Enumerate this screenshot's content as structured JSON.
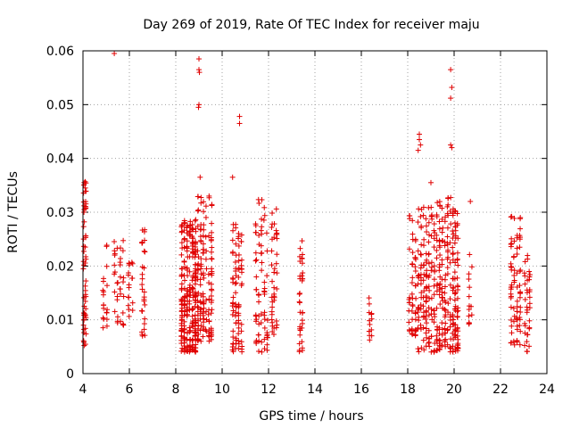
{
  "chart_data": {
    "type": "scatter",
    "title": "Day 269 of 2019, Rate Of TEC Index for receiver maju",
    "xlabel": "GPS time / hours",
    "ylabel": "ROTI / TECUs",
    "xlim": [
      4,
      24
    ],
    "ylim": [
      0,
      0.06
    ],
    "xticks": [
      4,
      6,
      8,
      10,
      12,
      14,
      16,
      18,
      20,
      22,
      24
    ],
    "xtick_labels": [
      "4",
      "6",
      "8",
      "10",
      "12",
      "14",
      "16",
      "18",
      "20",
      "22",
      "24"
    ],
    "yticks": [
      0,
      0.01,
      0.02,
      0.03,
      0.04,
      0.05,
      0.06
    ],
    "ytick_labels": [
      "0",
      "0.01",
      "0.02",
      "0.03",
      "0.04",
      "0.05",
      "0.06"
    ],
    "grid": true,
    "marker": "+",
    "color": "#e00000",
    "clusters": [
      {
        "x": [
          4.0,
          4.15
        ],
        "y": [
          0.005,
          0.036
        ],
        "n": 55
      },
      {
        "x": [
          4.8,
          5.1
        ],
        "y": [
          0.008,
          0.026
        ],
        "n": 20
      },
      {
        "x": [
          5.3,
          5.8
        ],
        "y": [
          0.009,
          0.025
        ],
        "n": 35
      },
      {
        "x": [
          5.9,
          6.2
        ],
        "y": [
          0.01,
          0.022
        ],
        "n": 18
      },
      {
        "x": [
          6.5,
          6.7
        ],
        "y": [
          0.007,
          0.027
        ],
        "n": 30
      },
      {
        "x": [
          8.2,
          8.9
        ],
        "y": [
          0.004,
          0.029
        ],
        "n": 260
      },
      {
        "x": [
          8.9,
          9.6
        ],
        "y": [
          0.006,
          0.033
        ],
        "n": 140
      },
      {
        "x": [
          10.4,
          10.9
        ],
        "y": [
          0.004,
          0.028
        ],
        "n": 80
      },
      {
        "x": [
          11.4,
          12.0
        ],
        "y": [
          0.004,
          0.033
        ],
        "n": 70
      },
      {
        "x": [
          12.1,
          12.4
        ],
        "y": [
          0.006,
          0.031
        ],
        "n": 40
      },
      {
        "x": [
          13.3,
          13.5
        ],
        "y": [
          0.004,
          0.025
        ],
        "n": 35
      },
      {
        "x": [
          16.3,
          16.5
        ],
        "y": [
          0.006,
          0.015
        ],
        "n": 14
      },
      {
        "x": [
          18.0,
          18.4
        ],
        "y": [
          0.007,
          0.03
        ],
        "n": 50
      },
      {
        "x": [
          18.4,
          19.2
        ],
        "y": [
          0.004,
          0.031
        ],
        "n": 140
      },
      {
        "x": [
          19.2,
          19.9
        ],
        "y": [
          0.004,
          0.033
        ],
        "n": 130
      },
      {
        "x": [
          19.9,
          20.2
        ],
        "y": [
          0.004,
          0.031
        ],
        "n": 90
      },
      {
        "x": [
          20.6,
          20.8
        ],
        "y": [
          0.009,
          0.026
        ],
        "n": 14
      },
      {
        "x": [
          22.4,
          22.9
        ],
        "y": [
          0.005,
          0.03
        ],
        "n": 75
      },
      {
        "x": [
          23.0,
          23.3
        ],
        "y": [
          0.004,
          0.023
        ],
        "n": 35
      }
    ],
    "outliers": [
      {
        "x": 4.05,
        "y": 0.0355
      },
      {
        "x": 4.1,
        "y": 0.0345
      },
      {
        "x": 4.05,
        "y": 0.0305
      },
      {
        "x": 5.35,
        "y": 0.0595
      },
      {
        "x": 9.0,
        "y": 0.0585
      },
      {
        "x": 9.0,
        "y": 0.0565
      },
      {
        "x": 9.02,
        "y": 0.056
      },
      {
        "x": 9.0,
        "y": 0.05
      },
      {
        "x": 8.98,
        "y": 0.0495
      },
      {
        "x": 9.05,
        "y": 0.0365
      },
      {
        "x": 10.45,
        "y": 0.0365
      },
      {
        "x": 10.75,
        "y": 0.0478
      },
      {
        "x": 10.75,
        "y": 0.0465
      },
      {
        "x": 18.5,
        "y": 0.0445
      },
      {
        "x": 18.5,
        "y": 0.0435
      },
      {
        "x": 18.45,
        "y": 0.0415
      },
      {
        "x": 18.55,
        "y": 0.0425
      },
      {
        "x": 19.0,
        "y": 0.0355
      },
      {
        "x": 19.85,
        "y": 0.0565
      },
      {
        "x": 19.9,
        "y": 0.0532
      },
      {
        "x": 19.85,
        "y": 0.0512
      },
      {
        "x": 19.85,
        "y": 0.0425
      },
      {
        "x": 19.9,
        "y": 0.042
      },
      {
        "x": 20.7,
        "y": 0.032
      }
    ]
  }
}
